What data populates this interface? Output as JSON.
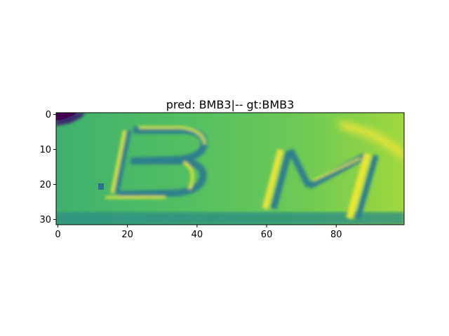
{
  "chart_data": {
    "type": "heatmap",
    "title": "pred: BMB3|-- gt:BMB3",
    "xlabel": "",
    "ylabel": "",
    "xlim": [
      -0.5,
      99.5
    ],
    "ylim": [
      31.5,
      -0.5
    ],
    "x_ticks": [
      0,
      20,
      40,
      60,
      80
    ],
    "y_ticks": [
      0,
      10,
      20,
      30
    ],
    "image_rows": 32,
    "image_cols": 100,
    "colormap": "viridis",
    "grid": false,
    "legend": "none"
  },
  "colors": {
    "background": "#ffffff",
    "axis": "#000000",
    "cmap_low": "#440154",
    "cmap_mid": "#21918c",
    "cmap_high": "#fde725"
  }
}
